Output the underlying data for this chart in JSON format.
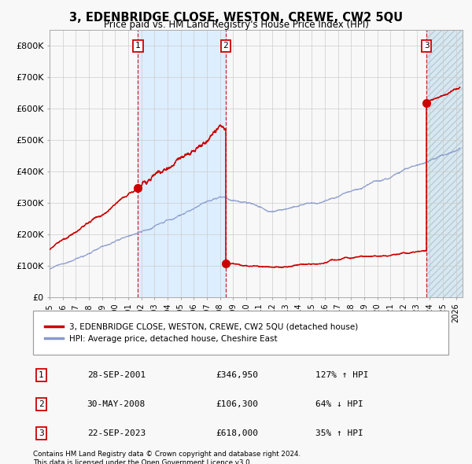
{
  "title": "3, EDENBRIDGE CLOSE, WESTON, CREWE, CW2 5QU",
  "subtitle": "Price paid vs. HM Land Registry's House Price Index (HPI)",
  "legend_red": "3, EDENBRIDGE CLOSE, WESTON, CREWE, CW2 5QU (detached house)",
  "legend_blue": "HPI: Average price, detached house, Cheshire East",
  "transactions": [
    {
      "num": 1,
      "date": "28-SEP-2001",
      "price": 346950,
      "hpi_pct": "127% ↑ HPI",
      "x_year": 2001.75
    },
    {
      "num": 2,
      "date": "30-MAY-2008",
      "price": 106300,
      "hpi_pct": "64% ↓ HPI",
      "x_year": 2008.42
    },
    {
      "num": 3,
      "date": "22-SEP-2023",
      "price": 618000,
      "hpi_pct": "35% ↑ HPI",
      "x_year": 2023.75
    }
  ],
  "footnote1": "Contains HM Land Registry data © Crown copyright and database right 2024.",
  "footnote2": "This data is licensed under the Open Government Licence v3.0.",
  "ylim": [
    0,
    850000
  ],
  "xlim_start": 1995,
  "xlim_end": 2026.5,
  "background_color": "#f8f8f8",
  "plot_bg_color": "#f8f8f8",
  "grid_color": "#cccccc",
  "shade_color": "#ddeeff",
  "red_color": "#cc0000",
  "blue_color": "#8899cc"
}
